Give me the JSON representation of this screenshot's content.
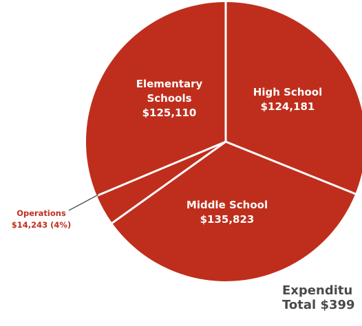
{
  "chart_data": {
    "type": "pie",
    "colors": {
      "slice": "#bf2e1c",
      "separator": "#ffffff",
      "callout_text": "#bf2e1c",
      "footer_text": "#4a4a4a"
    },
    "slices": [
      {
        "name_lines": [
          "High School"
        ],
        "value": 124181,
        "value_label": "$124,181"
      },
      {
        "name_lines": [
          "Middle School"
        ],
        "value": 135823,
        "value_label": "$135,823"
      },
      {
        "name_lines": [
          "Operations"
        ],
        "value": 14243,
        "value_label": "$14,243 (4%)"
      },
      {
        "name_lines": [
          "Elementary",
          "Schools"
        ],
        "value": 125110,
        "value_label": "$125,110"
      }
    ],
    "footer": {
      "line1": "Expenditu",
      "line2": "Total $399"
    }
  }
}
